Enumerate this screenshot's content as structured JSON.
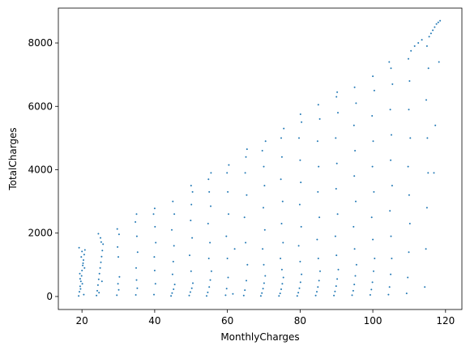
{
  "chart_data": {
    "type": "scatter",
    "xlabel": "MonthlyCharges",
    "ylabel": "TotalCharges",
    "xlim": [
      13.5,
      124.5
    ],
    "ylim": [
      -410,
      9100
    ],
    "x_ticks": [
      20,
      40,
      60,
      80,
      100,
      120
    ],
    "y_ticks": [
      0,
      2000,
      4000,
      6000,
      8000
    ],
    "x_tick_labels": [
      "20",
      "40",
      "60",
      "80",
      "100",
      "120"
    ],
    "y_tick_labels": [
      "0",
      "2000",
      "4000",
      "6000",
      "8000"
    ],
    "grid": false,
    "marker_color": "#1f77b4",
    "series": [
      {
        "points": [
          [
            19.1,
            20
          ],
          [
            19.3,
            150
          ],
          [
            19.5,
            320
          ],
          [
            19.7,
            480
          ],
          [
            19.9,
            650
          ],
          [
            20.0,
            820
          ],
          [
            20.2,
            980
          ],
          [
            20.4,
            1150
          ],
          [
            20.6,
            1320
          ],
          [
            20.8,
            1470
          ],
          [
            19.2,
            1540
          ],
          [
            20.5,
            60
          ],
          [
            19.6,
            240
          ],
          [
            20.1,
            400
          ],
          [
            19.4,
            720
          ],
          [
            20.3,
            1050
          ],
          [
            19.8,
            1250
          ],
          [
            20.7,
            900
          ],
          [
            19.5,
            560
          ],
          [
            20.0,
            1420
          ],
          [
            24.0,
            30
          ],
          [
            24.2,
            180
          ],
          [
            24.4,
            360
          ],
          [
            24.6,
            540
          ],
          [
            24.8,
            720
          ],
          [
            25.0,
            900
          ],
          [
            25.2,
            1080
          ],
          [
            25.4,
            1260
          ],
          [
            25.6,
            1450
          ],
          [
            25.8,
            1650
          ],
          [
            25.1,
            1850
          ],
          [
            24.5,
            1980
          ],
          [
            25.3,
            1720
          ],
          [
            24.7,
            120
          ],
          [
            25.5,
            480
          ],
          [
            29.6,
            40
          ],
          [
            30.1,
            210
          ],
          [
            29.9,
            400
          ],
          [
            30.3,
            620
          ],
          [
            30.0,
            1250
          ],
          [
            29.8,
            1560
          ],
          [
            30.2,
            1960
          ],
          [
            29.7,
            2130
          ],
          [
            34.8,
            50
          ],
          [
            35.2,
            260
          ],
          [
            35.0,
            520
          ],
          [
            34.9,
            900
          ],
          [
            35.3,
            1400
          ],
          [
            35.1,
            1900
          ],
          [
            34.7,
            2350
          ],
          [
            35.0,
            2600
          ],
          [
            39.8,
            60
          ],
          [
            40.2,
            400
          ],
          [
            40.0,
            820
          ],
          [
            39.9,
            1250
          ],
          [
            40.3,
            1700
          ],
          [
            40.1,
            2200
          ],
          [
            39.7,
            2600
          ],
          [
            40.0,
            2780
          ],
          [
            44.5,
            20
          ],
          [
            44.8,
            110
          ],
          [
            45.2,
            230
          ],
          [
            45.5,
            380
          ],
          [
            44.9,
            700
          ],
          [
            45.1,
            1100
          ],
          [
            45.3,
            1600
          ],
          [
            44.7,
            2100
          ],
          [
            45.4,
            2600
          ],
          [
            45.0,
            3000
          ],
          [
            49.5,
            30
          ],
          [
            49.8,
            140
          ],
          [
            50.2,
            260
          ],
          [
            50.5,
            420
          ],
          [
            50.0,
            800
          ],
          [
            49.6,
            1300
          ],
          [
            50.3,
            1850
          ],
          [
            49.9,
            2400
          ],
          [
            50.1,
            2900
          ],
          [
            50.4,
            3300
          ],
          [
            50.0,
            3500
          ],
          [
            54.3,
            20
          ],
          [
            54.6,
            130
          ],
          [
            55.0,
            300
          ],
          [
            55.3,
            520
          ],
          [
            55.6,
            800
          ],
          [
            54.9,
            1200
          ],
          [
            55.2,
            1700
          ],
          [
            54.7,
            2300
          ],
          [
            55.4,
            2850
          ],
          [
            55.0,
            3300
          ],
          [
            54.8,
            3700
          ],
          [
            55.5,
            3900
          ],
          [
            59.5,
            40
          ],
          [
            59.8,
            250
          ],
          [
            60.2,
            600
          ],
          [
            60.0,
            1200
          ],
          [
            59.7,
            1900
          ],
          [
            60.3,
            2600
          ],
          [
            60.1,
            3300
          ],
          [
            59.9,
            3900
          ],
          [
            60.4,
            4150
          ],
          [
            61.5,
            80
          ],
          [
            62.0,
            1500
          ],
          [
            64.5,
            30
          ],
          [
            64.8,
            200
          ],
          [
            65.2,
            500
          ],
          [
            65.5,
            1000
          ],
          [
            65.0,
            1700
          ],
          [
            64.7,
            2500
          ],
          [
            65.3,
            3200
          ],
          [
            64.9,
            3900
          ],
          [
            65.1,
            4400
          ],
          [
            65.4,
            4650
          ],
          [
            69.2,
            20
          ],
          [
            69.5,
            110
          ],
          [
            69.8,
            250
          ],
          [
            70.1,
            420
          ],
          [
            70.4,
            650
          ],
          [
            70.0,
            1000
          ],
          [
            69.7,
            1500
          ],
          [
            70.3,
            2100
          ],
          [
            69.9,
            2800
          ],
          [
            70.2,
            3500
          ],
          [
            70.0,
            4100
          ],
          [
            69.6,
            4600
          ],
          [
            70.5,
            4900
          ],
          [
            74.2,
            20
          ],
          [
            74.5,
            100
          ],
          [
            74.8,
            230
          ],
          [
            75.1,
            400
          ],
          [
            75.4,
            600
          ],
          [
            75.0,
            850
          ],
          [
            74.6,
            1200
          ],
          [
            75.3,
            1700
          ],
          [
            74.9,
            2300
          ],
          [
            75.2,
            3000
          ],
          [
            74.7,
            3700
          ],
          [
            75.0,
            4400
          ],
          [
            74.8,
            5000
          ],
          [
            75.5,
            5300
          ],
          [
            79.2,
            20
          ],
          [
            79.5,
            120
          ],
          [
            79.8,
            260
          ],
          [
            80.1,
            450
          ],
          [
            80.4,
            700
          ],
          [
            80.0,
            1100
          ],
          [
            79.6,
            1600
          ],
          [
            80.3,
            2200
          ],
          [
            79.9,
            2900
          ],
          [
            80.2,
            3600
          ],
          [
            80.0,
            4300
          ],
          [
            79.7,
            5000
          ],
          [
            80.4,
            5500
          ],
          [
            80.1,
            5750
          ],
          [
            84.3,
            30
          ],
          [
            84.6,
            150
          ],
          [
            84.9,
            300
          ],
          [
            85.2,
            500
          ],
          [
            85.5,
            800
          ],
          [
            85.0,
            1200
          ],
          [
            84.7,
            1800
          ],
          [
            85.3,
            2500
          ],
          [
            84.9,
            3300
          ],
          [
            85.1,
            4100
          ],
          [
            84.8,
            4900
          ],
          [
            85.4,
            5600
          ],
          [
            85.0,
            6050
          ],
          [
            89.3,
            30
          ],
          [
            89.6,
            160
          ],
          [
            89.9,
            330
          ],
          [
            90.2,
            550
          ],
          [
            90.5,
            850
          ],
          [
            90.0,
            1300
          ],
          [
            89.7,
            1900
          ],
          [
            90.3,
            2600
          ],
          [
            89.9,
            3400
          ],
          [
            90.1,
            4200
          ],
          [
            89.8,
            5000
          ],
          [
            90.4,
            5800
          ],
          [
            90.0,
            6300
          ],
          [
            90.2,
            6450
          ],
          [
            94.3,
            40
          ],
          [
            94.6,
            180
          ],
          [
            94.9,
            380
          ],
          [
            95.2,
            650
          ],
          [
            95.5,
            1000
          ],
          [
            95.0,
            1500
          ],
          [
            94.7,
            2200
          ],
          [
            95.3,
            3000
          ],
          [
            94.9,
            3800
          ],
          [
            95.1,
            4600
          ],
          [
            94.8,
            5400
          ],
          [
            95.4,
            6100
          ],
          [
            95.0,
            6600
          ],
          [
            99.3,
            50
          ],
          [
            99.6,
            220
          ],
          [
            99.9,
            450
          ],
          [
            100.2,
            800
          ],
          [
            100.5,
            1200
          ],
          [
            100.0,
            1800
          ],
          [
            99.7,
            2500
          ],
          [
            100.3,
            3300
          ],
          [
            99.9,
            4100
          ],
          [
            100.1,
            4900
          ],
          [
            99.8,
            5700
          ],
          [
            100.4,
            6500
          ],
          [
            100.0,
            6950
          ],
          [
            104.3,
            60
          ],
          [
            104.6,
            300
          ],
          [
            104.9,
            700
          ],
          [
            105.2,
            1200
          ],
          [
            105.0,
            1900
          ],
          [
            104.7,
            2700
          ],
          [
            105.3,
            3500
          ],
          [
            104.9,
            4300
          ],
          [
            105.1,
            5100
          ],
          [
            104.8,
            5900
          ],
          [
            105.4,
            6700
          ],
          [
            105.0,
            7200
          ],
          [
            104.5,
            7400
          ],
          [
            109.3,
            100
          ],
          [
            109.6,
            600
          ],
          [
            109.9,
            1400
          ],
          [
            110.2,
            2300
          ],
          [
            110.0,
            3200
          ],
          [
            109.7,
            4100
          ],
          [
            110.3,
            5000
          ],
          [
            109.9,
            5900
          ],
          [
            110.1,
            6800
          ],
          [
            109.8,
            7500
          ],
          [
            110.5,
            7750
          ],
          [
            114.3,
            300
          ],
          [
            114.6,
            1500
          ],
          [
            114.9,
            2800
          ],
          [
            115.2,
            3900
          ],
          [
            115.0,
            5000
          ],
          [
            114.7,
            6200
          ],
          [
            115.3,
            7200
          ],
          [
            114.9,
            7900
          ],
          [
            115.5,
            8200
          ],
          [
            116.0,
            8300
          ],
          [
            116.5,
            8400
          ],
          [
            117.0,
            8500
          ],
          [
            117.5,
            8600
          ],
          [
            118.0,
            8650
          ],
          [
            118.5,
            8700
          ],
          [
            117.2,
            5400
          ],
          [
            118.2,
            7400
          ],
          [
            116.8,
            3900
          ],
          [
            111.5,
            7900
          ],
          [
            112.5,
            8000
          ],
          [
            113.5,
            8100
          ]
        ]
      }
    ]
  }
}
